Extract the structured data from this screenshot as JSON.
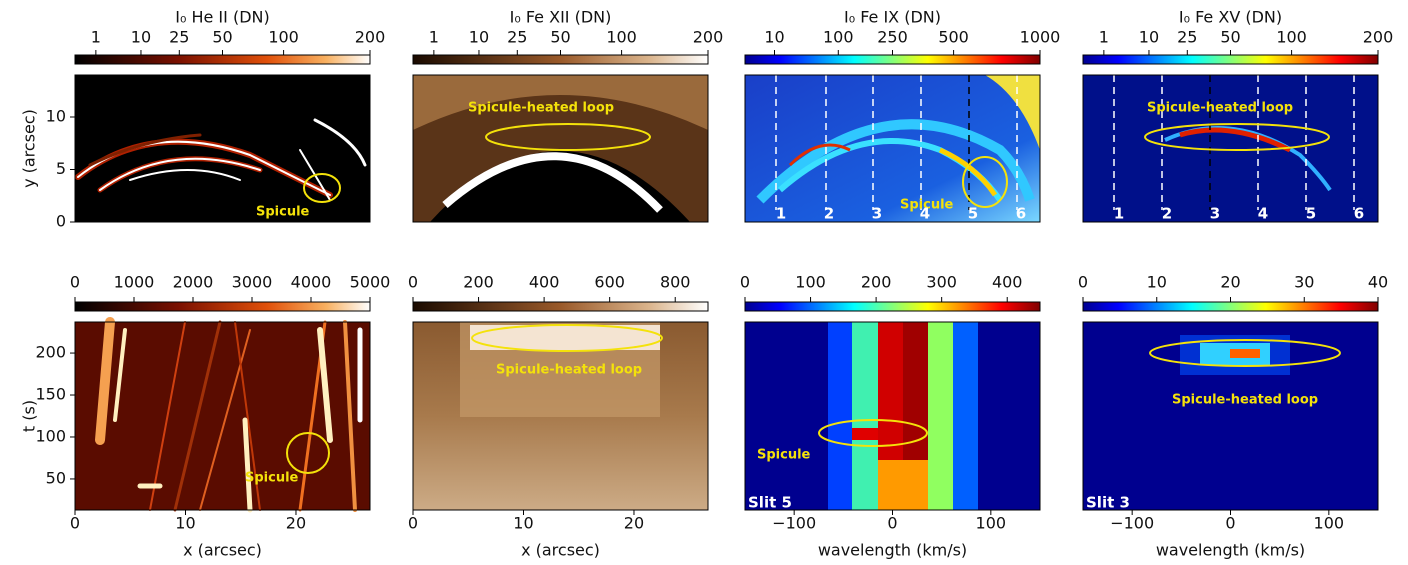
{
  "chart_data": [
    {
      "type": "image",
      "colorbar": {
        "title": "I₀ He II (DN)",
        "lim": [
          0,
          200
        ],
        "ticks": [
          1,
          10,
          25,
          50,
          100,
          200
        ],
        "scale": "sqrt",
        "cmap": "heat"
      },
      "ylabel": "y (arcsec)",
      "ylim": [
        0,
        14
      ],
      "yticks": [
        0,
        5,
        10
      ],
      "annotations": [
        "Spicule"
      ]
    },
    {
      "type": "image",
      "colorbar": {
        "title": "I₀ Fe XII (DN)",
        "lim": [
          0,
          200
        ],
        "ticks": [
          1,
          10,
          25,
          50,
          100,
          200
        ],
        "scale": "sqrt",
        "cmap": "copper"
      },
      "annotations": [
        "Spicule-heated loop"
      ]
    },
    {
      "type": "image",
      "colorbar": {
        "title": "I₀ Fe IX (DN)",
        "lim": [
          0,
          1000
        ],
        "ticks": [
          10,
          100,
          250,
          500,
          1000
        ],
        "scale": "sqrt",
        "cmap": "jet"
      },
      "annotations": [
        "Spicule"
      ],
      "slit_labels": [
        "1",
        "2",
        "3",
        "4",
        "5",
        "6"
      ]
    },
    {
      "type": "image",
      "colorbar": {
        "title": "I₀ Fe XV (DN)",
        "lim": [
          0,
          200
        ],
        "ticks": [
          1,
          10,
          25,
          50,
          100,
          200
        ],
        "scale": "sqrt",
        "cmap": "jet"
      },
      "annotations": [
        "Spicule-heated loop"
      ],
      "slit_labels": [
        "1",
        "2",
        "3",
        "4",
        "5",
        "6"
      ]
    },
    {
      "type": "image",
      "colorbar": {
        "lim": [
          0,
          5000
        ],
        "ticks": [
          0,
          1000,
          2000,
          3000,
          4000,
          5000
        ],
        "scale": "linear",
        "cmap": "heat"
      },
      "xlabel": "x (arcsec)",
      "xlim": [
        0,
        26.7
      ],
      "xticks": [
        0,
        10,
        20
      ],
      "ylabel": "t (s)",
      "ylim": [
        13,
        237
      ],
      "yticks": [
        50,
        100,
        150,
        200
      ],
      "annotations": [
        "Spicule"
      ]
    },
    {
      "type": "image",
      "colorbar": {
        "lim": [
          0,
          900
        ],
        "ticks": [
          0,
          200,
          400,
          600,
          800
        ],
        "scale": "linear",
        "cmap": "copper"
      },
      "xlabel": "x (arcsec)",
      "xlim": [
        0,
        26.7
      ],
      "xticks": [
        0,
        10,
        20
      ],
      "annotations": [
        "Spicule-heated loop"
      ]
    },
    {
      "type": "image",
      "colorbar": {
        "lim": [
          0,
          450
        ],
        "ticks": [
          0,
          100,
          200,
          300,
          400
        ],
        "scale": "linear",
        "cmap": "jet"
      },
      "xlabel": "wavelength (km/s)",
      "xlim": [
        -150,
        150
      ],
      "xticks": [
        {
          "value": -100,
          "label": "−100"
        },
        0,
        100
      ],
      "annotations": [
        "Spicule",
        "Slit 5"
      ]
    },
    {
      "type": "image",
      "colorbar": {
        "lim": [
          0,
          40
        ],
        "ticks": [
          0,
          10,
          20,
          30,
          40
        ],
        "scale": "linear",
        "cmap": "jet"
      },
      "xlabel": "wavelength (km/s)",
      "xlim": [
        -150,
        150
      ],
      "xticks": [
        {
          "value": -100,
          "label": "−100"
        },
        0,
        100
      ],
      "annotations": [
        "Spicule-heated loop",
        "Slit 3"
      ]
    }
  ]
}
